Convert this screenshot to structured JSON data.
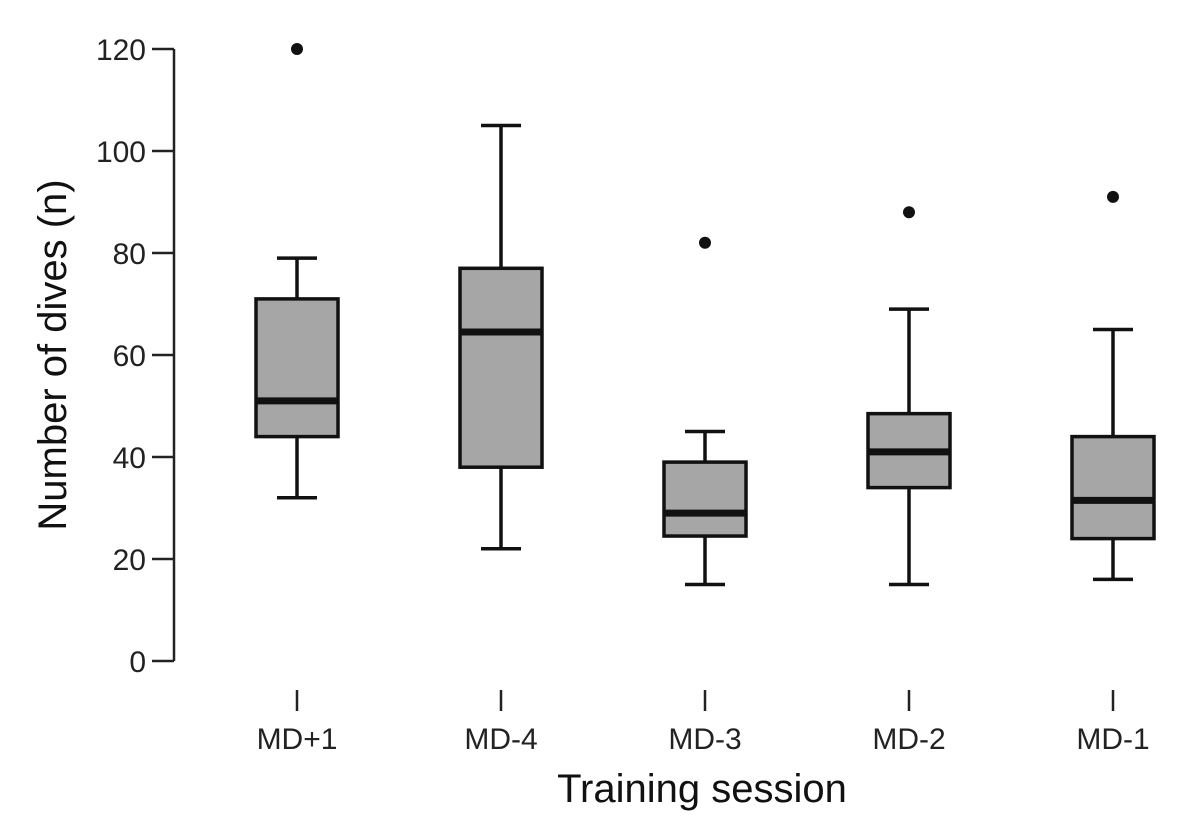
{
  "chart_data": {
    "type": "box",
    "xlabel": "Training session",
    "ylabel": "Number of dives (n)",
    "ylim": [
      0,
      120
    ],
    "yticks": [
      0,
      20,
      40,
      60,
      80,
      100,
      120
    ],
    "grid": false,
    "box_fill": "#a6a6a6",
    "line_color": "#111111",
    "categories": [
      "MD+1",
      "MD-4",
      "MD-3",
      "MD-2",
      "MD-1"
    ],
    "boxes": [
      {
        "category": "MD+1",
        "whisker_low": 32,
        "q1": 44,
        "median": 51,
        "q3": 71,
        "whisker_high": 79,
        "outliers": [
          120
        ]
      },
      {
        "category": "MD-4",
        "whisker_low": 22,
        "q1": 38,
        "median": 64.5,
        "q3": 77,
        "whisker_high": 105,
        "outliers": []
      },
      {
        "category": "MD-3",
        "whisker_low": 15,
        "q1": 24.5,
        "median": 29,
        "q3": 39,
        "whisker_high": 45,
        "outliers": [
          82
        ]
      },
      {
        "category": "MD-2",
        "whisker_low": 15,
        "q1": 34,
        "median": 41,
        "q3": 48.5,
        "whisker_high": 69,
        "outliers": [
          88
        ]
      },
      {
        "category": "MD-1",
        "whisker_low": 16,
        "q1": 24,
        "median": 31.5,
        "q3": 44,
        "whisker_high": 65,
        "outliers": [
          91
        ]
      }
    ]
  }
}
